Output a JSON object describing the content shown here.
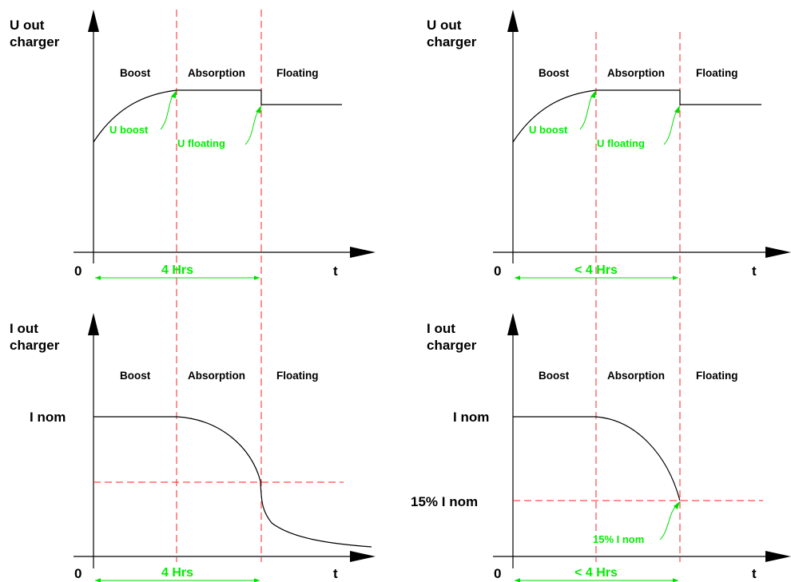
{
  "panels": [
    {
      "y_label": [
        "U out",
        "charger"
      ],
      "phases": [
        "Boost",
        "Absorption",
        "Floating"
      ],
      "origin": "0",
      "t_label": "t",
      "duration": "4 Hrs",
      "annotations": [
        "U boost",
        "U floating"
      ]
    },
    {
      "y_label": [
        "U out",
        "charger"
      ],
      "phases": [
        "Boost",
        "Absorption",
        "Floating"
      ],
      "origin": "0",
      "t_label": "t",
      "duration": "< 4 Hrs",
      "annotations": [
        "U boost",
        "U floating"
      ]
    },
    {
      "y_label": [
        "I out",
        "charger"
      ],
      "phases": [
        "Boost",
        "Absorption",
        "Floating"
      ],
      "origin": "0",
      "t_label": "t",
      "duration": "4 Hrs",
      "level_labels": [
        "I nom"
      ]
    },
    {
      "y_label": [
        "I out",
        "charger"
      ],
      "phases": [
        "Boost",
        "Absorption",
        "Floating"
      ],
      "origin": "0",
      "t_label": "t",
      "duration": "< 4 Hrs",
      "level_labels": [
        "I nom",
        "15% I nom"
      ],
      "annotations": [
        "15% I nom"
      ]
    }
  ],
  "colors": {
    "curve": "#000000",
    "phase_divider": "#ff2020",
    "annotation": "#00ee00"
  }
}
